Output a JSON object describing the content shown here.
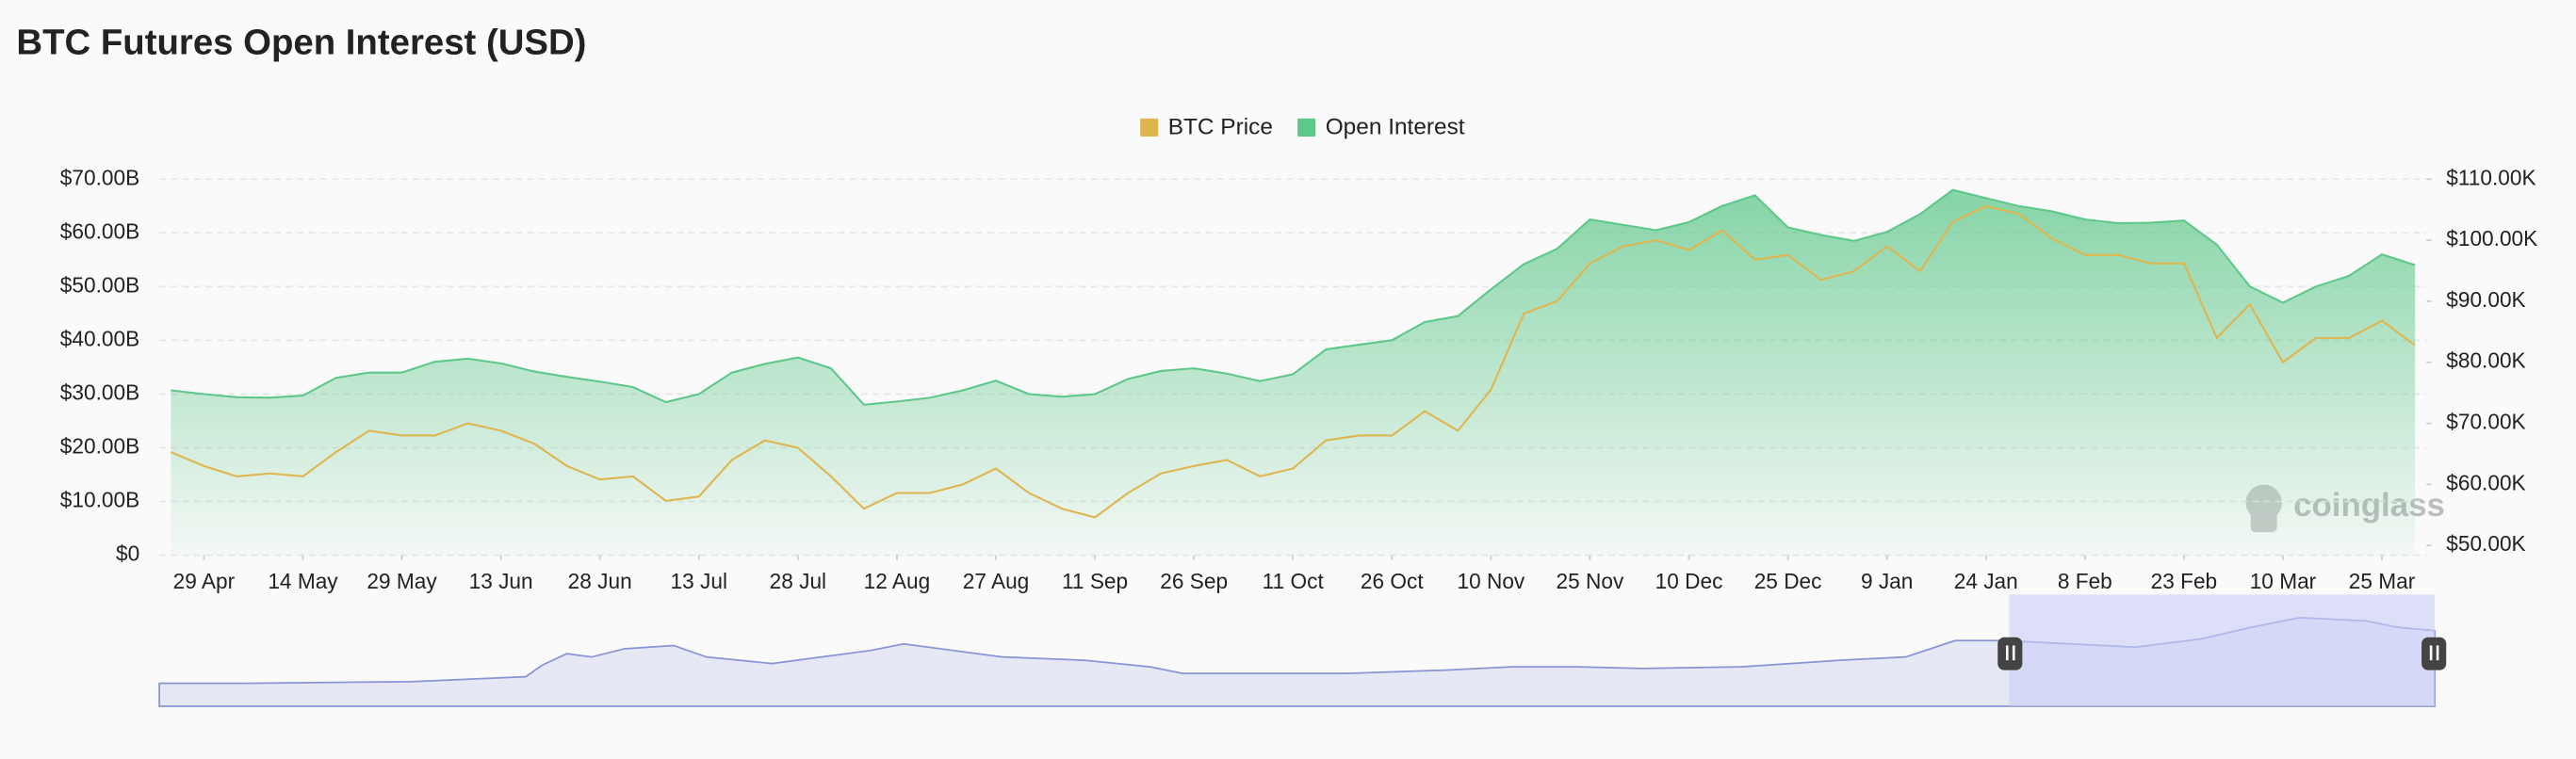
{
  "chart_data": {
    "type": "line",
    "title": "BTC Futures Open Interest (USD)",
    "watermark": "coinglass",
    "categories": [
      null,
      "29 Apr",
      null,
      null,
      "14 May",
      null,
      null,
      "29 May",
      null,
      null,
      "13 Jun",
      null,
      null,
      "28 Jun",
      null,
      null,
      "13 Jul",
      null,
      null,
      "28 Jul",
      null,
      null,
      "12 Aug",
      null,
      null,
      "27 Aug",
      null,
      null,
      "11 Sep",
      null,
      null,
      "26 Sep",
      null,
      null,
      "11 Oct",
      null,
      null,
      "26 Oct",
      null,
      null,
      "10 Nov",
      null,
      null,
      "25 Nov",
      null,
      null,
      "10 Dec",
      null,
      null,
      "25 Dec",
      null,
      null,
      "9 Jan",
      null,
      null,
      "24 Jan",
      null,
      null,
      "8 Feb",
      null,
      null,
      "23 Feb",
      null,
      null,
      "10 Mar",
      null,
      null,
      "25 Mar",
      null
    ],
    "series": [
      {
        "name": "BTC Price",
        "color": "#dfb54f",
        "axis": "y2",
        "kind": "line",
        "values": [
          65.3,
          63,
          61.3,
          61.8,
          61.3,
          65.3,
          68.8,
          68,
          68,
          70,
          68.8,
          66.7,
          63,
          60.8,
          61.3,
          57.3,
          58,
          64,
          67.2,
          66,
          61.3,
          56,
          58.6,
          58.6,
          60,
          62.6,
          58.6,
          56,
          54.6,
          58.6,
          61.8,
          63,
          64,
          61.3,
          62.6,
          67.2,
          68,
          68,
          72,
          68.8,
          75.5,
          88,
          90,
          96.2,
          99,
          100,
          98.4,
          101.6,
          96.8,
          97.6,
          93.5,
          94.9,
          99,
          94.9,
          103,
          105.6,
          104.3,
          100.3,
          97.6,
          97.6,
          96.2,
          96.2,
          84,
          89.5,
          80,
          84,
          84,
          86.8,
          82.8
        ]
      },
      {
        "name": "Open Interest",
        "color": "#5ec78a",
        "kind": "area",
        "values": [
          30.7,
          30,
          29.4,
          29.3,
          29.7,
          33,
          34,
          34,
          36,
          36.6,
          35.7,
          34.2,
          33.2,
          32.3,
          31.3,
          28.5,
          30,
          34,
          35.6,
          36.8,
          34.8,
          28,
          28.6,
          29.3,
          30.7,
          32.5,
          30,
          29.5,
          30,
          32.8,
          34.3,
          34.8,
          33.8,
          32.4,
          33.7,
          38.3,
          39.2,
          40,
          43.4,
          44.5,
          49.5,
          54.2,
          57,
          62.5,
          61.5,
          60.5,
          62,
          65,
          67,
          61,
          59.6,
          58.5,
          60.2,
          63.5,
          68,
          66.5,
          65,
          64,
          62.5,
          61.8,
          61.9,
          62.3,
          57.8,
          50,
          47,
          50,
          52,
          56,
          54
        ]
      }
    ],
    "ylim": [
      0,
      70
    ],
    "yticks": [
      {
        "value": 0,
        "label": "$0"
      },
      {
        "value": 10,
        "label": "$10.00B"
      },
      {
        "value": 20,
        "label": "$20.00B"
      },
      {
        "value": 30,
        "label": "$30.00B"
      },
      {
        "value": 40,
        "label": "$40.00B"
      },
      {
        "value": 50,
        "label": "$50.00B"
      },
      {
        "value": 60,
        "label": "$60.00B"
      },
      {
        "value": 70,
        "label": "$70.00B"
      }
    ],
    "y2lim": [
      48.4,
      110
    ],
    "y2ticks": [
      {
        "value": 50,
        "label": "$50.00K"
      },
      {
        "value": 60,
        "label": "$60.00K"
      },
      {
        "value": 70,
        "label": "$70.00K"
      },
      {
        "value": 80,
        "label": "$80.00K"
      },
      {
        "value": 90,
        "label": "$90.00K"
      },
      {
        "value": 100,
        "label": "$100.00K"
      },
      {
        "value": 110,
        "label": "$110.00K"
      }
    ],
    "grid": true,
    "legend": "top"
  }
}
